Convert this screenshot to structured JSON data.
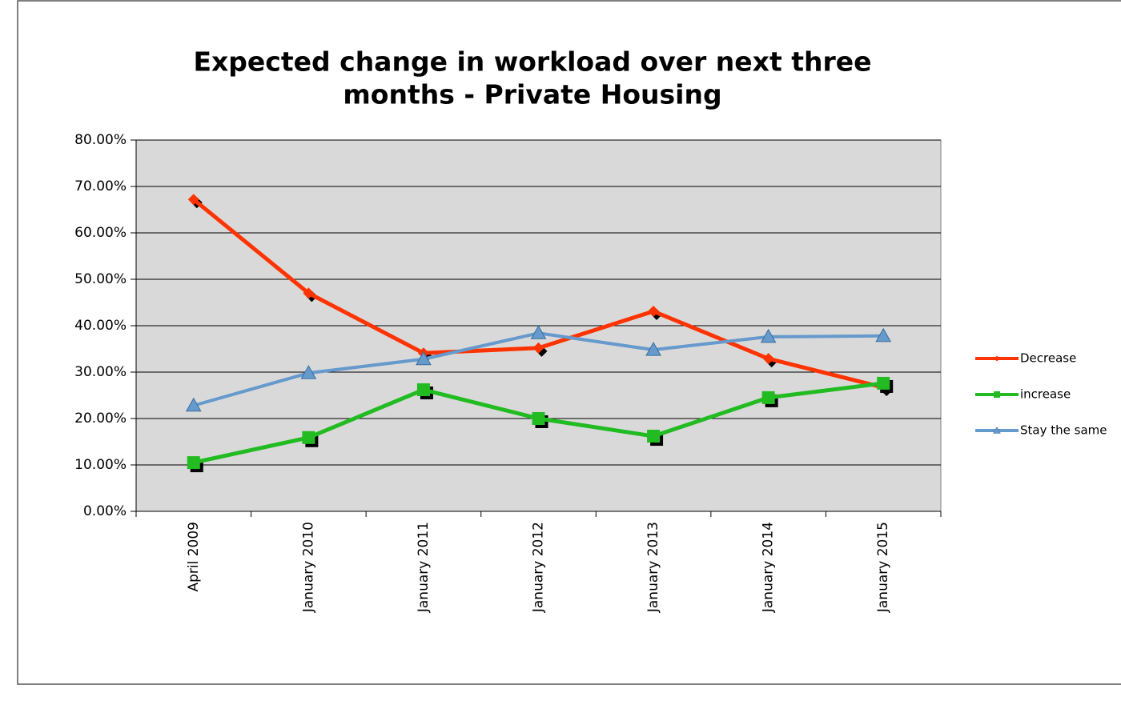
{
  "chart_data": {
    "type": "line",
    "title": [
      "Expected change in workload over next three",
      "months  - Private Housing"
    ],
    "categories": [
      "April 2009",
      "January 2010",
      "January 2011",
      "January 2012",
      "January 2013",
      "January 2014",
      "January 2015"
    ],
    "series": [
      {
        "name": "Decrease",
        "color": "#ff3300",
        "marker": "diamond",
        "values": [
          67.2,
          47,
          34.1,
          35.2,
          43.1,
          32.9,
          26.7
        ]
      },
      {
        "name": "increase",
        "color": "#22bb22",
        "marker": "square",
        "values": [
          10.5,
          15.9,
          26.2,
          20,
          16.2,
          24.5,
          27.6
        ]
      },
      {
        "name": "Stay the same",
        "color": "#6699cc",
        "marker": "triangle",
        "values": [
          22.8,
          29.8,
          32.8,
          38.4,
          34.8,
          37.6,
          37.8
        ]
      }
    ],
    "ylim": [
      0,
      80
    ],
    "yticks": [
      {
        "value": 0,
        "label": "0.00%"
      },
      {
        "value": 10,
        "label": "10.00%"
      },
      {
        "value": 20,
        "label": "20.00%"
      },
      {
        "value": 30,
        "label": "30.00%"
      },
      {
        "value": 40,
        "label": "40.00%"
      },
      {
        "value": 50,
        "label": "50.00%"
      },
      {
        "value": 60,
        "label": "60.00%"
      },
      {
        "value": 70,
        "label": "70.00%"
      },
      {
        "value": 80,
        "label": "80.00%"
      }
    ],
    "grid": true,
    "legend": "right"
  }
}
